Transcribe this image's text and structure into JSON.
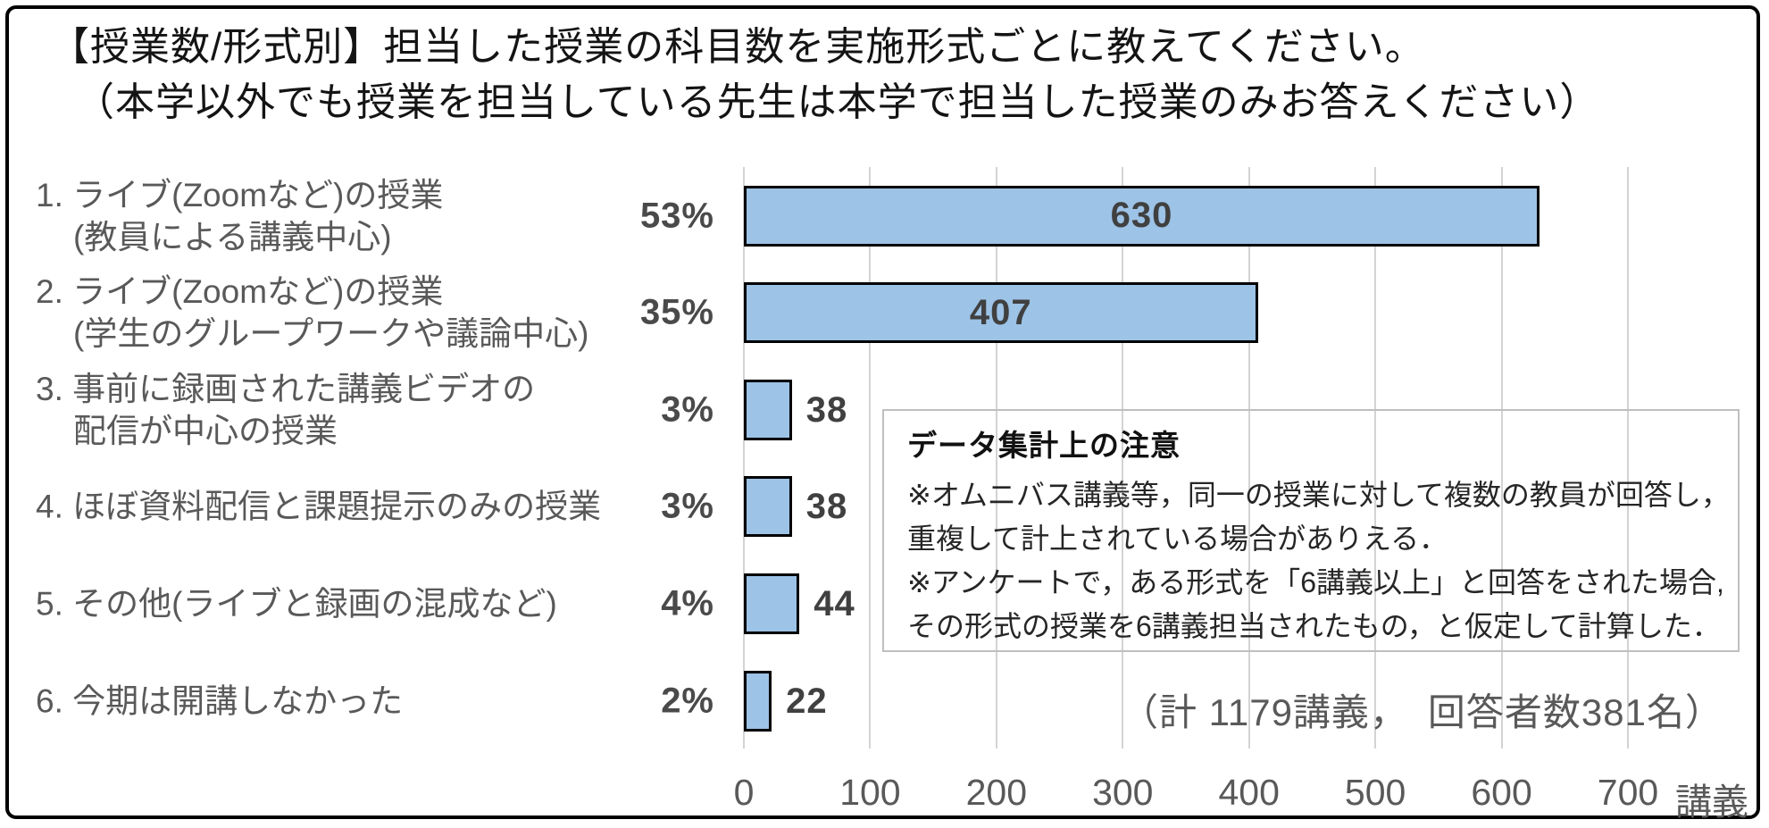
{
  "title": {
    "line1": "【授業数/形式別】担当した授業の科目数を実施形式ごとに教えてください。",
    "line2": "（本学以外でも授業を担当している先生は本学で担当した授業のみお答えください）"
  },
  "chart_data": {
    "type": "bar",
    "orientation": "horizontal",
    "title": "【授業数/形式別】担当した授業の科目数を実施形式ごとに教えてください。（本学以外でも授業を担当している先生は本学で担当した授業のみお答えください）",
    "categories": [
      [
        "1. ライブ(Zoomなど)の授業",
        "(教員による講義中心)"
      ],
      [
        "2. ライブ(Zoomなど)の授業",
        "(学生のグループワークや議論中心)"
      ],
      [
        "3. 事前に録画された講義ビデオの",
        "配信が中心の授業"
      ],
      [
        "4. ほぼ資料配信と課題提示のみの授業"
      ],
      [
        "5. その他(ライブと録画の混成など)"
      ],
      [
        "6. 今期は開講しなかった"
      ]
    ],
    "values": [
      630,
      407,
      38,
      38,
      44,
      22
    ],
    "percent_labels": [
      "53%",
      "35%",
      "3%",
      "3%",
      "4%",
      "2%"
    ],
    "xlabel": "講義",
    "ylabel": "",
    "xlim": [
      0,
      700
    ],
    "xticks": [
      0,
      100,
      200,
      300,
      400,
      500,
      600,
      700
    ],
    "grid": true,
    "legend": false,
    "bar_color": "#9dc3e6",
    "bar_border_color": "#000000",
    "gridline_color": "#d3d3d3"
  },
  "note": {
    "heading": "データ集計上の注意",
    "lines": [
      "※オムニバス講義等，同一の授業に対して複数の教員が回答し，",
      "重複して計上されている場合がありえる．",
      "※アンケートで，ある形式を「6講義以上」と回答をされた場合,",
      "その形式の授業を6講義担当されたもの，と仮定して計算した．"
    ]
  },
  "total_label": "（計 1179講義，　回答者数381名）",
  "x_axis": {
    "tick_labels": [
      "0",
      "100",
      "200",
      "300",
      "400",
      "500",
      "600",
      "700"
    ],
    "unit_label": "講義"
  }
}
